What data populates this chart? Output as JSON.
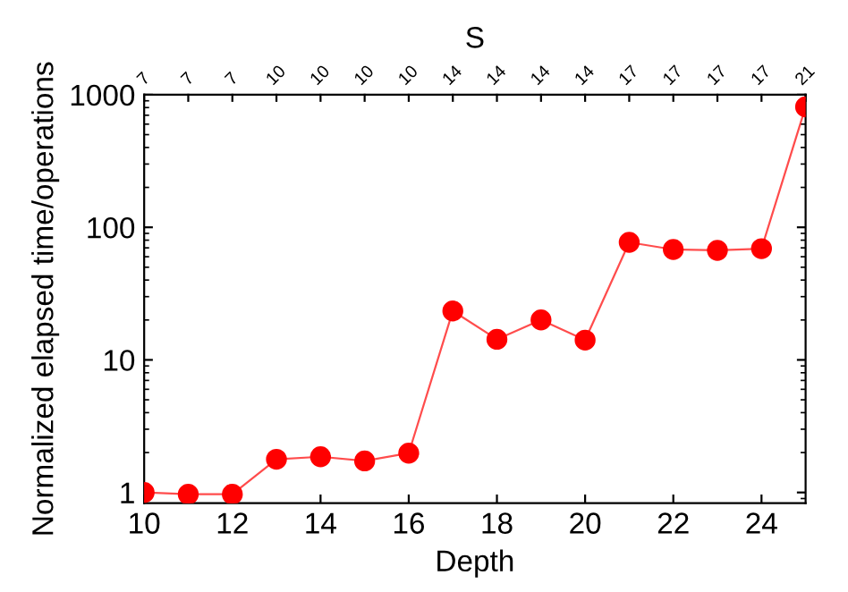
{
  "chart_data": {
    "type": "line",
    "xlabel": "Depth",
    "ylabel": "Normalized elapsed time/operations",
    "x2label": "S",
    "x": [
      10,
      11,
      12,
      13,
      14,
      15,
      16,
      17,
      18,
      19,
      20,
      21,
      22,
      23,
      24,
      25
    ],
    "series": [
      {
        "color": "#ff0000",
        "values": [
          1.0,
          0.97,
          0.97,
          1.78,
          1.86,
          1.73,
          1.98,
          23.4,
          14.3,
          20,
          14.1,
          77,
          68,
          67,
          69,
          810
        ]
      }
    ],
    "log": "y",
    "xlim": [
      10,
      25
    ],
    "xticks": [
      10,
      12,
      14,
      16,
      18,
      20,
      22,
      24
    ],
    "ylim": [
      0.83,
      1000
    ],
    "yticks": [
      1,
      10,
      100,
      1000
    ],
    "annotations": [
      "7",
      "7",
      "7",
      "10",
      "10",
      "10",
      "10",
      "14",
      "14",
      "14",
      "14",
      "17",
      "17",
      "17",
      "17",
      "21"
    ],
    "marker": "circle",
    "line_style": "solid",
    "grid": false,
    "legend": false
  }
}
